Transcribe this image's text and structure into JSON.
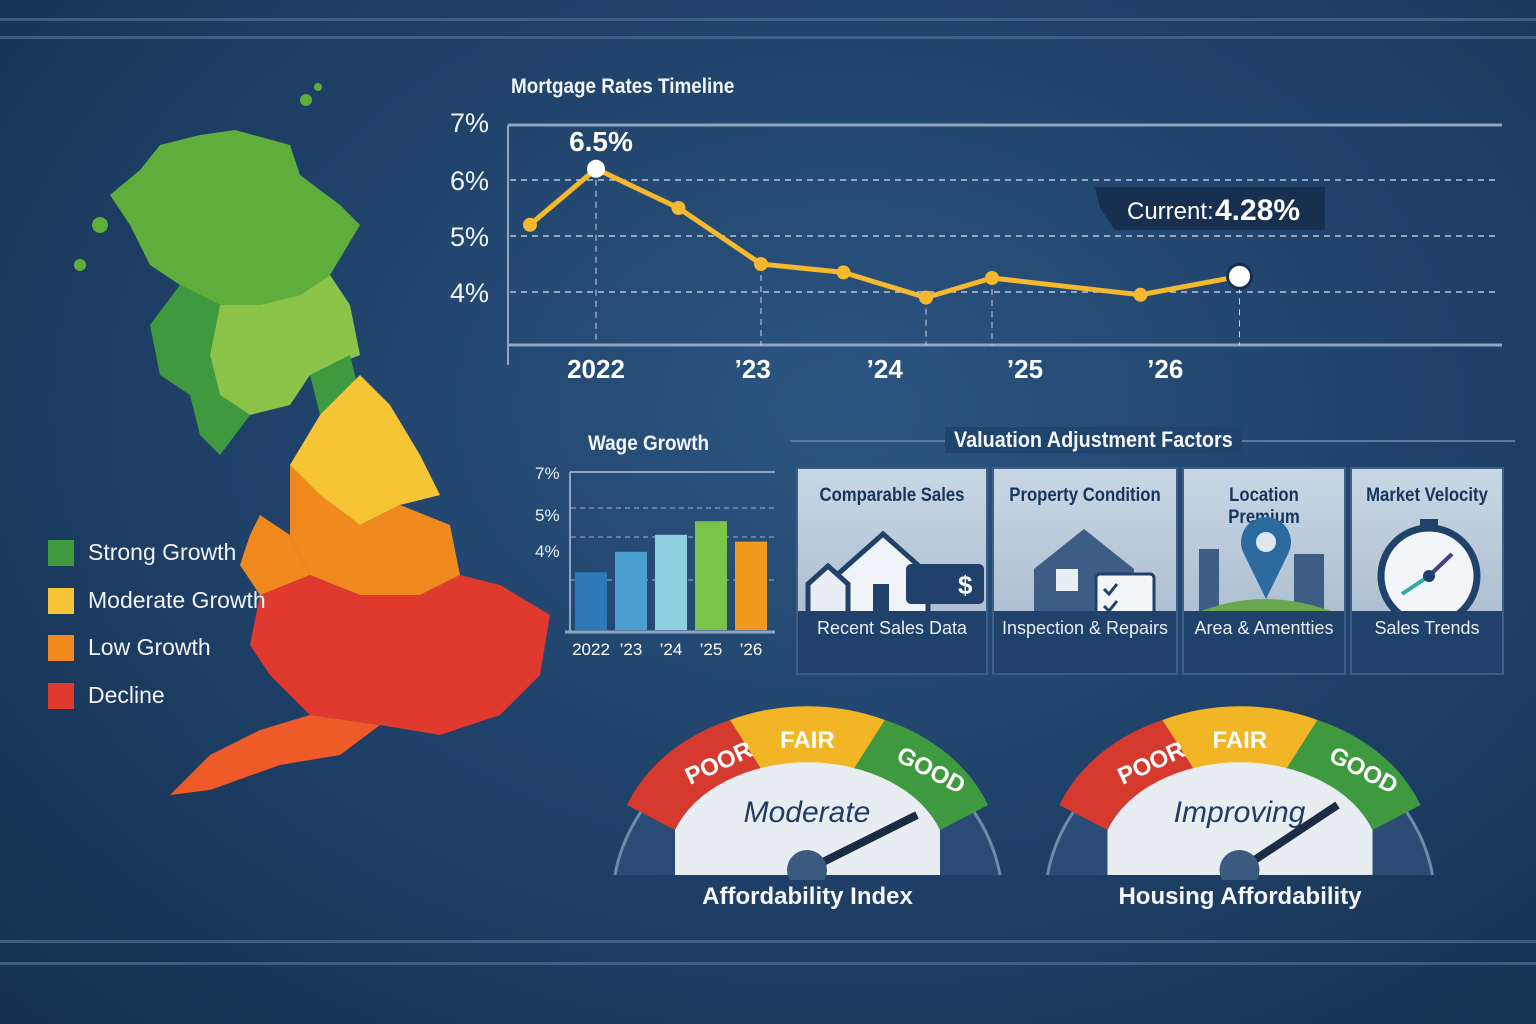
{
  "map": {
    "legend": [
      {
        "label": "Strong Growth",
        "color": "#3f9a3f"
      },
      {
        "label": "Moderate Growth",
        "color": "#f5c535"
      },
      {
        "label": "Low Growth",
        "color": "#f08a1e"
      },
      {
        "label": "Decline",
        "color": "#e03a2e"
      }
    ]
  },
  "chart_data": [
    {
      "type": "line",
      "title": "Mortgage Rates Timeline",
      "ylabel": "",
      "xlabel": "",
      "y_ticks": [
        "4%",
        "5%",
        "6%",
        "7%"
      ],
      "ylim": [
        3.2,
        7
      ],
      "x_ticks": [
        "2022",
        "’23",
        "’24",
        "’25",
        "’26"
      ],
      "x": [
        2021.6,
        2022,
        2022.5,
        2023,
        2023.5,
        2024,
        2024.4,
        2025.3,
        2025.9
      ],
      "values": [
        5.2,
        6.2,
        5.5,
        4.5,
        4.35,
        3.9,
        4.25,
        3.95,
        4.28
      ],
      "annotations": {
        "peak": "6.5%",
        "current_label": "Current:",
        "current_value": "4.28%"
      },
      "color": "#f5b82e"
    },
    {
      "type": "bar",
      "title": "Wage Growth",
      "y_ticks": [
        "4%",
        "5%",
        "7%"
      ],
      "categories": [
        "2022",
        "’23",
        "’24",
        "’25",
        "’26"
      ],
      "values": [
        4.2,
        4.8,
        5.3,
        5.7,
        5.1
      ],
      "ylim": [
        2.5,
        7
      ],
      "colors": [
        "#2f78b8",
        "#4a9fd0",
        "#8fd0e0",
        "#7cc34a",
        "#f39a1e"
      ]
    }
  ],
  "factors": {
    "title": "Valuation Adjustment Factors",
    "cards": [
      {
        "title": "Comparable Sales",
        "desc": "Recent Sales Data"
      },
      {
        "title": "Property Condition",
        "desc": "Inspection & Repairs"
      },
      {
        "title": "Location Premium",
        "desc": "Area & Amentties"
      },
      {
        "title": "Market Velocity",
        "desc": "Sales Trends"
      }
    ]
  },
  "gauges": [
    {
      "zones": [
        "POOR",
        "FAIR",
        "GOOD"
      ],
      "reading": "Moderate",
      "label": "Affordability Index",
      "needle": 0.78
    },
    {
      "zones": [
        "POOR",
        "FAIR",
        "GOOD"
      ],
      "reading": "Improving",
      "label": "Housing Affordability",
      "needle": 0.72
    }
  ]
}
